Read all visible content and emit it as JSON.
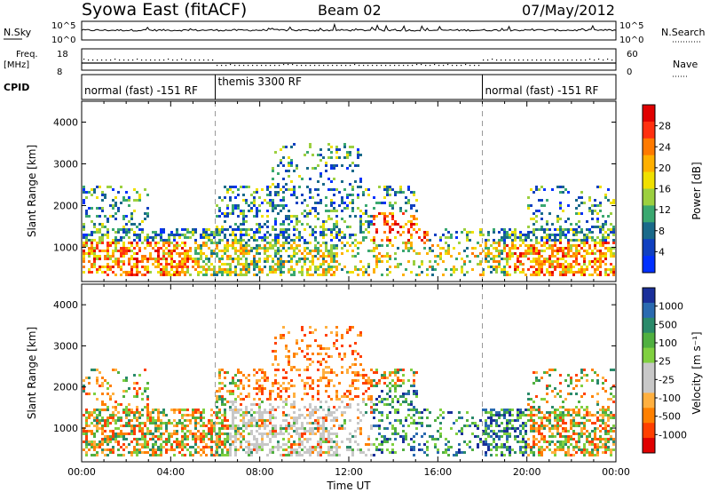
{
  "header": {
    "station": "Syowa East (fitACF)",
    "beam": "Beam 02",
    "date": "07/May/2012"
  },
  "strips": {
    "nsky_label": "N.Sky",
    "nsky_top": "10^5",
    "nsky_bottom": "10^0",
    "nsearch_label": "N.Search",
    "nsearch_top": "10^5",
    "nsearch_bottom": "10^0",
    "freq_label_1": "Freq.",
    "freq_label_2": "[MHz]",
    "freq_top": "18",
    "freq_bottom": "8",
    "nave_label": "Nave",
    "nave_top": "60",
    "nave_bottom": "0",
    "cpid_label": "CPID",
    "modes": [
      {
        "label": "normal (fast) -151 RF",
        "start": 0,
        "end": 6
      },
      {
        "label": "themis 3300 RF",
        "start": 6,
        "end": 18
      },
      {
        "label": "normal (fast) -151 RF",
        "start": 18,
        "end": 24
      }
    ]
  },
  "chart_data": [
    {
      "type": "heatmap",
      "parameter": "Power",
      "xlabel": "",
      "ylabel": "Slant Range [km]",
      "x_range_hours": [
        0,
        24
      ],
      "ylim": [
        180,
        4500
      ],
      "yticks": [
        1000,
        2000,
        3000,
        4000
      ],
      "colorbar_label": "Power [dB]",
      "colorbar_ticks": [
        "28",
        "24",
        "20",
        "16",
        "12",
        "8",
        "4"
      ],
      "colorbar_colors": [
        "#e00000",
        "#ff3010",
        "#ff7a00",
        "#ffb000",
        "#f0e000",
        "#9cd040",
        "#3aa870",
        "#1a6a8a",
        "#1040c0",
        "#0030ff"
      ],
      "mode_change_hours": [
        6,
        18
      ]
    },
    {
      "type": "heatmap",
      "parameter": "Velocity",
      "xlabel": "Time UT",
      "ylabel": "Slant Range [km]",
      "x_range_hours": [
        0,
        24
      ],
      "ylim": [
        180,
        4500
      ],
      "yticks": [
        1000,
        2000,
        3000,
        4000
      ],
      "xticks": [
        "00:00",
        "04:00",
        "08:00",
        "12:00",
        "16:00",
        "20:00",
        "00:00"
      ],
      "colorbar_label": "Velocity [m s⁻¹]",
      "colorbar_ticks": [
        "1000",
        "500",
        "100",
        "25",
        "-25",
        "-100",
        "-500",
        "-1000"
      ],
      "colorbar_colors": [
        "#1a2f9a",
        "#2a6ab0",
        "#2a8a6a",
        "#50b040",
        "#80d040",
        "#c8c8c8",
        "#c8c8c8",
        "#ffb040",
        "#ff8000",
        "#ff4000",
        "#e00000"
      ],
      "mode_change_hours": [
        6,
        18
      ]
    }
  ],
  "palette": {
    "power": [
      "#0030ff",
      "#1040c0",
      "#1a6a8a",
      "#3aa870",
      "#9cd040",
      "#f0e000",
      "#ffb000",
      "#ff7a00",
      "#ff3010",
      "#e00000"
    ],
    "velocity_pos": [
      "#1a2f9a",
      "#2a6ab0",
      "#2a8a6a",
      "#50b040",
      "#80d040"
    ],
    "velocity_neg": [
      "#ffb040",
      "#ff8000",
      "#ff4000",
      "#e00000"
    ],
    "grey": "#c8c8c8"
  }
}
